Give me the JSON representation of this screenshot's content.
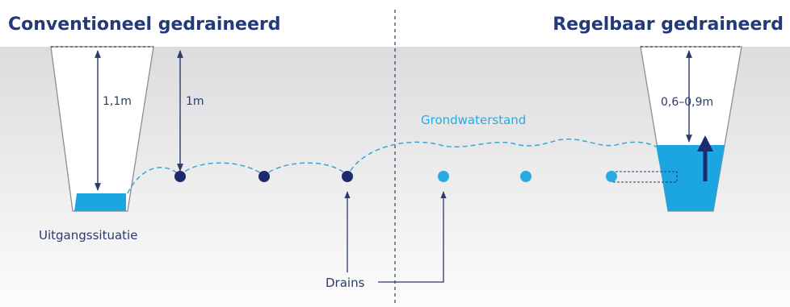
{
  "left_title": "Conventioneel gedraineerd",
  "right_title": "Regelbaar gedraineerd",
  "measurements": {
    "ditch_depth_left": "1,1m",
    "drain_depth_left": "1m",
    "ditch_depth_right": "0,6–0,9m"
  },
  "labels": {
    "groundwater": "Grondwaterstand",
    "initial_situation": "Uitgangssituatie",
    "drains": "Drains"
  },
  "colors": {
    "title": "#233a7a",
    "dark_drain": "#1f2a6e",
    "light_drain": "#29aae2",
    "water": "#1ba5e1",
    "groundwater_line": "#3aa6d6",
    "soil_top": "#dcdcde",
    "soil_bottom": "#fbfbfb"
  }
}
